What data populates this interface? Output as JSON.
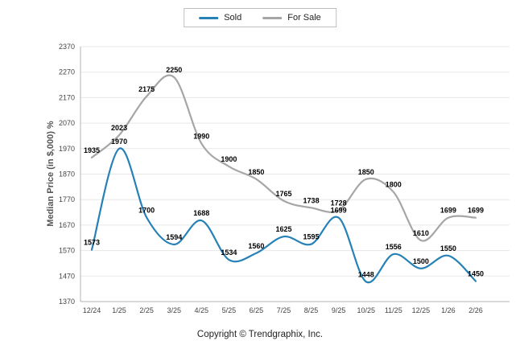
{
  "chart_data": {
    "type": "line",
    "title": "",
    "ylabel": "Median Price (in $,000) %",
    "xlabel": "",
    "categories": [
      "12/24",
      "1/25",
      "2/25",
      "3/25",
      "4/25",
      "5/25",
      "6/25",
      "7/25",
      "8/25",
      "9/25",
      "10/25",
      "11/25",
      "12/25",
      "1/26",
      "2/26"
    ],
    "series": [
      {
        "name": "Sold",
        "color": "#2581b6",
        "values": [
          1573,
          1970,
          1700,
          1594,
          1688,
          1534,
          1560,
          1625,
          1595,
          1699,
          1448,
          1556,
          1500,
          1550,
          1450
        ]
      },
      {
        "name": "For Sale",
        "color": "#a6a6a6",
        "values": [
          1935,
          2023,
          2175,
          2250,
          1990,
          1900,
          1850,
          1765,
          1738,
          1728,
          1850,
          1800,
          1610,
          1699,
          1699
        ]
      }
    ],
    "ylim": [
      1370,
      2370
    ],
    "ytick_step": 100,
    "yticks": [
      1370,
      1470,
      1570,
      1670,
      1770,
      1870,
      1970,
      2070,
      2170,
      2270,
      2370
    ],
    "grid": true,
    "legend_position": "top-center",
    "line_smoothing": true,
    "footer": "Copyright © Trendgraphix, Inc.",
    "colors": {
      "grid": "#e7e7e7",
      "axis": "#b3b3b3",
      "tick_label": "#444444",
      "data_label": "#000000"
    }
  }
}
